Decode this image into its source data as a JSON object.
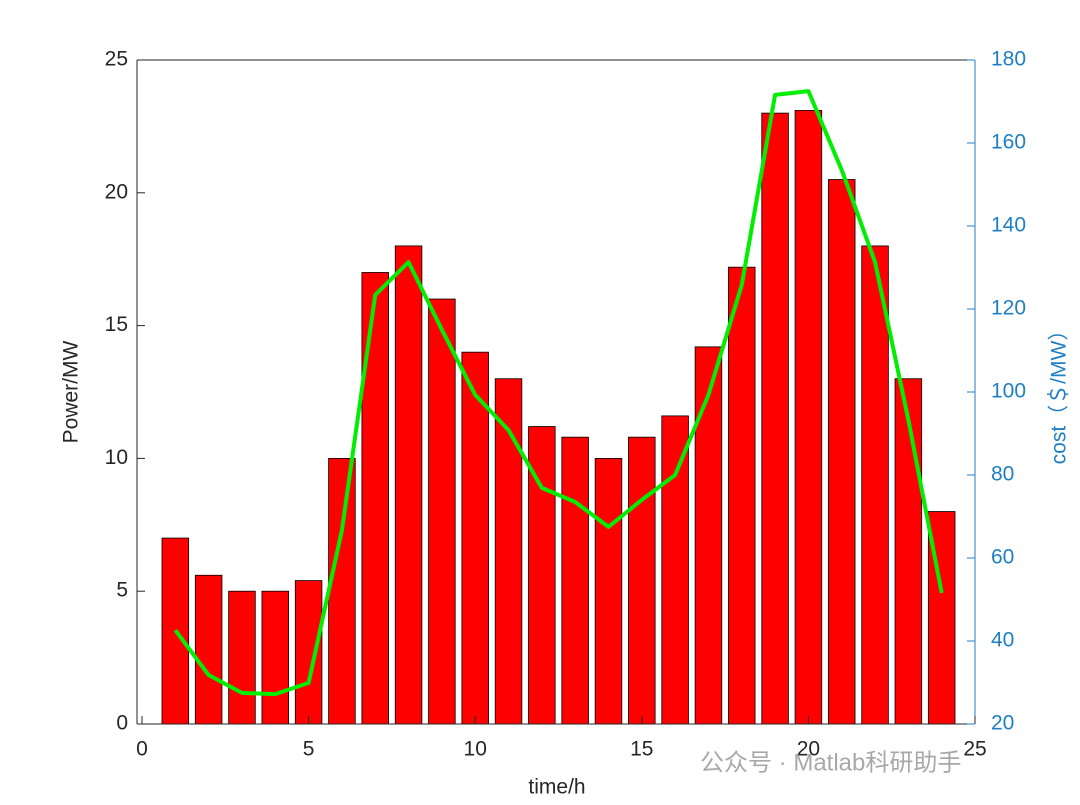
{
  "chart_data": {
    "type": "bar-line",
    "x_label": "time/h",
    "y_label": "Power/MW",
    "y2_label": "cost（＄/MW）",
    "watermark": "公众号 · Matlab科研助手",
    "x": [
      1,
      2,
      3,
      4,
      5,
      6,
      7,
      8,
      9,
      10,
      11,
      12,
      13,
      14,
      15,
      16,
      17,
      18,
      19,
      20,
      21,
      22,
      23,
      24
    ],
    "series": [
      {
        "type": "bar",
        "color": "#ff0000",
        "values": [
          7,
          5.6,
          5,
          5,
          5.4,
          10,
          17,
          18,
          16,
          14,
          13,
          11.2,
          10.8,
          10,
          10.8,
          11.6,
          14.2,
          17.2,
          23,
          23.1,
          20.5,
          18,
          13,
          8
        ]
      },
      {
        "type": "line",
        "axis": "y2",
        "color": "#00ee00",
        "values": [
          42.6,
          31.8,
          27.5,
          27.2,
          29.9,
          66.7,
          123.4,
          131.3,
          115,
          99.3,
          90.8,
          76.9,
          73.5,
          67.5,
          74,
          80,
          99.3,
          125.8,
          171.6,
          172.5,
          153.5,
          131.3,
          93.3,
          51.6
        ]
      }
    ],
    "xlim": [
      0,
      25
    ],
    "xticks": [
      0,
      5,
      10,
      15,
      20,
      25
    ],
    "ylim": [
      0,
      25
    ],
    "yticks": [
      0,
      5,
      10,
      15,
      20,
      25
    ],
    "y2lim": [
      20,
      180
    ],
    "y2ticks": [
      20,
      40,
      60,
      80,
      100,
      120,
      140,
      160,
      180
    ],
    "y2color": "#1f7fc4"
  }
}
